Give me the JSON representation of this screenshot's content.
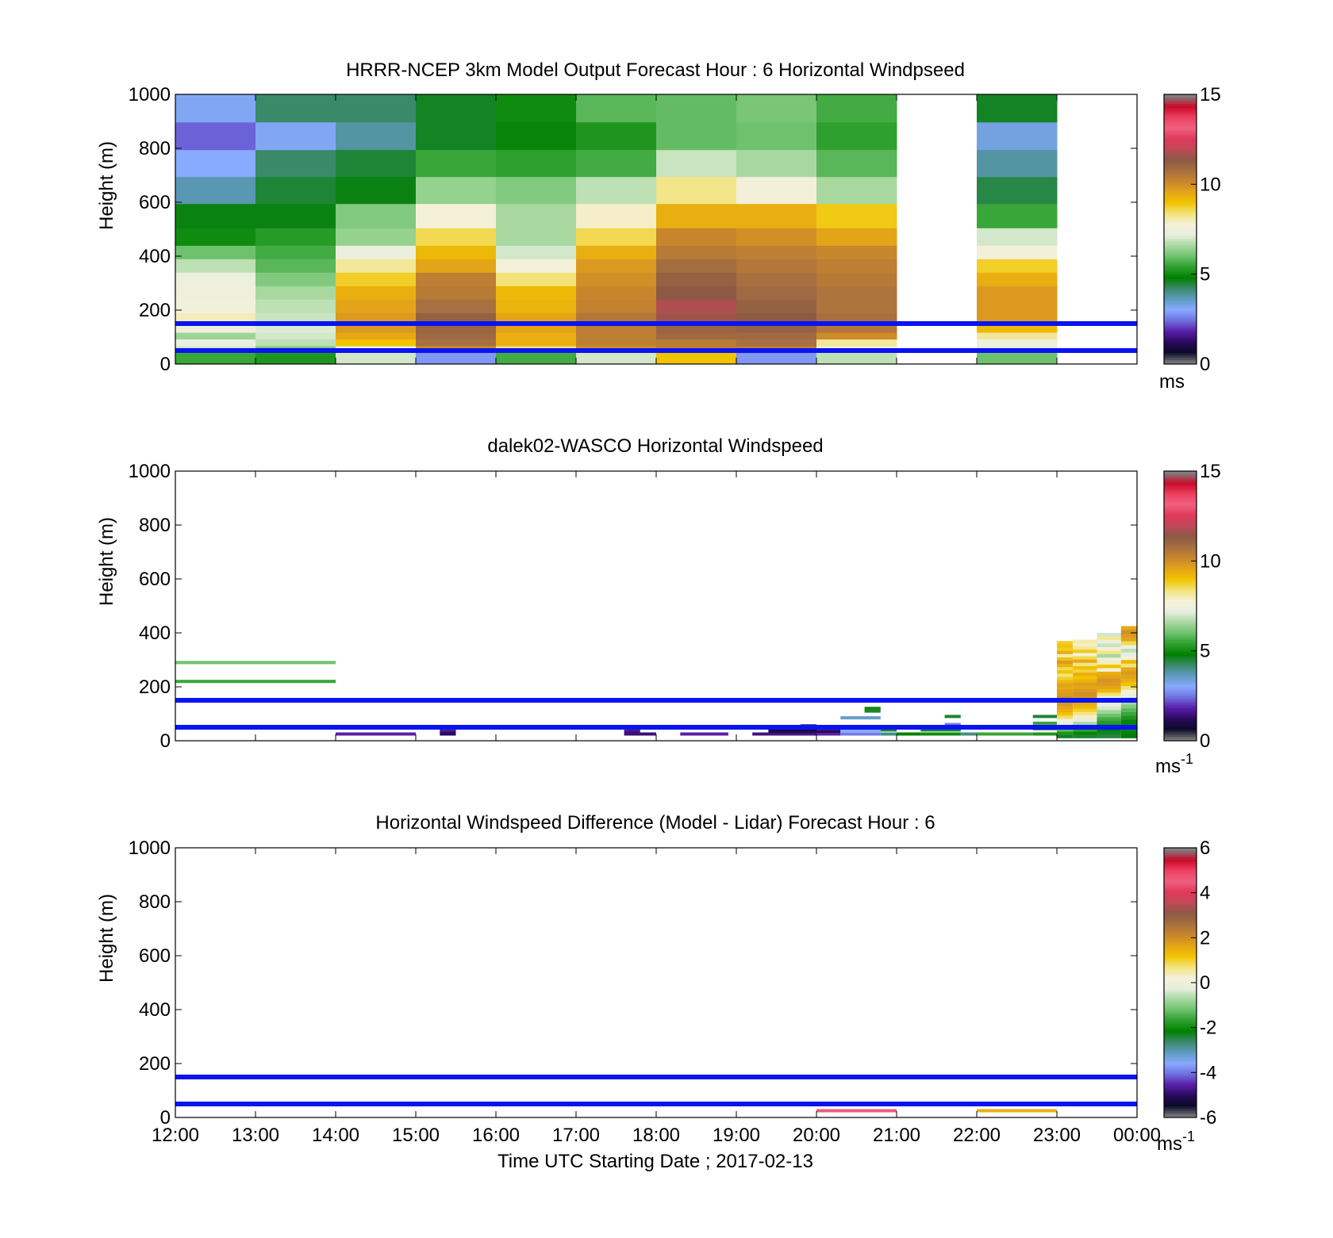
{
  "chart_data": [
    {
      "type": "heatmap",
      "title": "HRRR-NCEP 3km Model Output   Forecast Hour : 6 Horizontal Windpseed",
      "ylabel": "Height (m)",
      "xlim": [
        "12:00",
        "00:00"
      ],
      "ylim": [
        0,
        1000
      ],
      "yticks": [
        0,
        200,
        400,
        600,
        800,
        1000
      ],
      "colorbar": {
        "ticks": [
          0,
          5,
          10,
          15
        ],
        "range": [
          0,
          15
        ],
        "unit": "ms"
      },
      "reference_lines_m": [
        150,
        50
      ],
      "height_levels_m": [
        30,
        55,
        80,
        105,
        130,
        165,
        215,
        265,
        315,
        365,
        415,
        465,
        545,
        645,
        745,
        845,
        950
      ],
      "columns": [
        {
          "time": "12:00",
          "values": [
            5.5,
            7.0,
            7.3,
            6.5,
            7.5,
            8.0,
            7.6,
            7.5,
            7.4,
            6.8,
            6.0,
            5.0,
            4.7,
            3.7,
            3.0,
            2.3,
            3.1
          ]
        },
        {
          "time": "13:00",
          "values": [
            5.2,
            6.2,
            6.8,
            7.0,
            7.1,
            6.9,
            6.8,
            6.6,
            6.2,
            5.8,
            5.6,
            5.3,
            4.7,
            4.5,
            4.2,
            3.1,
            4.2
          ]
        },
        {
          "time": "14:00",
          "values": [
            7.0,
            7.4,
            9.0,
            9.5,
            9.8,
            9.8,
            9.6,
            9.4,
            8.8,
            8.2,
            7.4,
            6.4,
            6.2,
            4.7,
            4.5,
            3.8,
            4.2
          ]
        },
        {
          "time": "15:00",
          "values": [
            2.8,
            10.1,
            10.8,
            11.0,
            11.1,
            11.2,
            10.8,
            10.5,
            10.4,
            9.6,
            9.2,
            8.6,
            7.8,
            6.4,
            5.5,
            4.6,
            4.6
          ]
        },
        {
          "time": "16:00",
          "values": [
            5.6,
            8.4,
            9.4,
            9.4,
            9.6,
            9.6,
            9.3,
            9.2,
            8.4,
            7.8,
            7.0,
            6.6,
            6.6,
            6.2,
            5.4,
            4.9,
            5.0
          ]
        },
        {
          "time": "17:00",
          "values": [
            7.0,
            10.0,
            10.4,
            10.4,
            10.4,
            10.6,
            10.3,
            10.2,
            10.0,
            9.8,
            9.4,
            8.6,
            7.9,
            6.8,
            5.6,
            5.2,
            5.8
          ]
        },
        {
          "time": "18:00",
          "values": [
            9.0,
            10.4,
            10.5,
            11.0,
            11.1,
            11.6,
            11.8,
            11.4,
            11.2,
            10.9,
            10.5,
            10.2,
            9.4,
            8.3,
            6.9,
            5.9,
            5.9
          ]
        },
        {
          "time": "19:00",
          "values": [
            2.8,
            10.4,
            10.8,
            11.0,
            11.2,
            11.4,
            11.2,
            11.0,
            10.8,
            10.6,
            10.4,
            10.0,
            9.4,
            7.7,
            6.6,
            6.0,
            6.1
          ]
        },
        {
          "time": "20:00",
          "values": [
            6.8,
            7.6,
            8.2,
            10.1,
            10.6,
            10.8,
            10.7,
            10.7,
            10.5,
            10.4,
            10.2,
            9.6,
            8.9,
            6.6,
            5.8,
            5.4,
            5.6
          ]
        },
        {
          "time": "21:00",
          "values": []
        },
        {
          "time": "22:00",
          "values": [
            6.0,
            7.2,
            7.5,
            8.2,
            9.2,
            9.8,
            9.8,
            9.8,
            9.4,
            8.8,
            7.7,
            7.0,
            5.5,
            4.4,
            3.8,
            3.3,
            4.6
          ]
        },
        {
          "time": "23:00",
          "values": []
        }
      ]
    },
    {
      "type": "heatmap",
      "title": "dalek02-WASCO  Horizontal Windspeed",
      "ylabel": "Height (m)",
      "xlim": [
        "12:00",
        "00:00"
      ],
      "ylim": [
        0,
        1000
      ],
      "yticks": [
        0,
        200,
        400,
        600,
        800,
        1000
      ],
      "colorbar": {
        "ticks": [
          0,
          5,
          10,
          15
        ],
        "range": [
          0,
          15
        ],
        "unit": "ms",
        "unit_exponent": "-1"
      },
      "reference_lines_m": [
        150,
        50
      ],
      "observations": [
        {
          "t0": 12.0,
          "t1": 14.0,
          "z": 290,
          "v": 6.0
        },
        {
          "t0": 12.0,
          "t1": 14.0,
          "z": 220,
          "v": 5.5
        },
        {
          "t0": 14.0,
          "t1": 15.0,
          "z": 25,
          "v": 1.8
        },
        {
          "t0": 15.3,
          "t1": 15.5,
          "z": 35,
          "v": 1.5
        },
        {
          "t0": 15.3,
          "t1": 15.5,
          "z": 25,
          "v": 1.2
        },
        {
          "t0": 17.6,
          "t1": 17.8,
          "z": 35,
          "v": 1.5
        },
        {
          "t0": 17.6,
          "t1": 18.0,
          "z": 25,
          "v": 1.4
        },
        {
          "t0": 18.3,
          "t1": 18.9,
          "z": 25,
          "v": 1.8
        },
        {
          "t0": 19.2,
          "t1": 20.0,
          "z": 25,
          "v": 1.5
        },
        {
          "t0": 19.4,
          "t1": 20.0,
          "z": 35,
          "v": 1.0
        },
        {
          "t0": 19.4,
          "t1": 20.0,
          "z": 45,
          "v": 0.8
        },
        {
          "t0": 19.8,
          "t1": 20.0,
          "z": 55,
          "v": 0.5
        },
        {
          "t0": 20.0,
          "t1": 20.3,
          "z": 25,
          "v": 1.8
        },
        {
          "t0": 20.0,
          "t1": 20.3,
          "z": 35,
          "v": 1.2
        },
        {
          "t0": 20.3,
          "t1": 20.8,
          "z": 25,
          "v": 2.5
        },
        {
          "t0": 20.3,
          "t1": 20.8,
          "z": 35,
          "v": 3.0
        },
        {
          "t0": 20.3,
          "t1": 20.8,
          "z": 45,
          "v": 2.8
        },
        {
          "t0": 20.3,
          "t1": 20.8,
          "z": 85,
          "v": 3.5
        },
        {
          "t0": 20.6,
          "t1": 20.8,
          "z": 110,
          "v": 4.5
        },
        {
          "t0": 20.6,
          "t1": 20.8,
          "z": 120,
          "v": 5.0
        },
        {
          "t0": 20.8,
          "t1": 21.0,
          "z": 25,
          "v": 4.0
        },
        {
          "t0": 20.8,
          "t1": 21.0,
          "z": 40,
          "v": 4.5
        },
        {
          "t0": 21.0,
          "t1": 21.3,
          "z": 25,
          "v": 4.8
        },
        {
          "t0": 21.3,
          "t1": 21.8,
          "z": 25,
          "v": 5.0
        },
        {
          "t0": 21.3,
          "t1": 21.8,
          "z": 40,
          "v": 4.5
        },
        {
          "t0": 21.6,
          "t1": 21.8,
          "z": 60,
          "v": 2.5
        },
        {
          "t0": 21.6,
          "t1": 21.8,
          "z": 90,
          "v": 4.5
        },
        {
          "t0": 21.8,
          "t1": 22.0,
          "z": 25,
          "v": 4.0
        },
        {
          "t0": 22.0,
          "t1": 22.7,
          "z": 25,
          "v": 5.5
        },
        {
          "t0": 22.7,
          "t1": 23.0,
          "z": 25,
          "v": 5.2
        },
        {
          "t0": 22.7,
          "t1": 23.0,
          "z": 45,
          "v": 4.8
        },
        {
          "t0": 22.7,
          "t1": 23.0,
          "z": 65,
          "v": 5.5
        },
        {
          "t0": 22.7,
          "t1": 23.0,
          "z": 90,
          "v": 4.5
        }
      ],
      "profiles": [
        {
          "t0": 23.0,
          "t1": 23.2,
          "z0": 10,
          "z1": 370,
          "values": [
            4.6,
            5.2,
            5.8,
            6.3,
            7.2,
            7.8,
            8.5,
            9.0,
            9.4,
            9.6,
            9.8,
            9.9,
            10.0,
            9.8,
            9.7,
            9.5,
            9.6,
            9.2,
            8.8,
            8.4,
            9.0,
            8.6,
            9.3,
            9.8,
            9.1,
            8.0,
            9.4,
            8.8,
            9.0,
            8.8
          ]
        },
        {
          "t0": 23.2,
          "t1": 23.5,
          "z0": 10,
          "z1": 375,
          "values": [
            4.5,
            4.9,
            5.4,
            6.0,
            6.6,
            7.2,
            7.9,
            8.3,
            8.8,
            9.2,
            9.5,
            9.7,
            9.9,
            10.0,
            9.8,
            9.6,
            9.7,
            9.3,
            9.0,
            9.4,
            8.7,
            9.1,
            8.3,
            9.5,
            8.6,
            7.8,
            8.9,
            8.2,
            7.9,
            8.1
          ]
        },
        {
          "t0": 23.5,
          "t1": 23.8,
          "z0": 10,
          "z1": 400,
          "values": [
            4.4,
            4.6,
            4.8,
            5.0,
            5.3,
            5.6,
            6.0,
            6.5,
            7.0,
            7.3,
            7.1,
            7.6,
            8.4,
            9.2,
            9.6,
            9.8,
            9.9,
            9.6,
            9.4,
            7.8,
            9.0,
            8.0,
            7.5,
            6.6,
            8.3,
            7.7,
            6.9,
            7.4,
            8.2,
            7.0
          ]
        },
        {
          "t0": 23.8,
          "t1": 24.0,
          "z0": 10,
          "z1": 425,
          "values": [
            4.8,
            4.7,
            4.6,
            4.7,
            4.9,
            5.2,
            5.5,
            5.8,
            6.2,
            6.6,
            7.0,
            7.4,
            7.8,
            8.4,
            9.0,
            9.4,
            9.6,
            9.8,
            9.5,
            8.4,
            9.2,
            7.8,
            7.2,
            6.8,
            7.4,
            8.6,
            9.6,
            9.8,
            10.0,
            9.5
          ]
        }
      ]
    },
    {
      "type": "heatmap",
      "title": "Horizontal Windspeed Difference (Model - Lidar) Forecast Hour : 6",
      "xlabel": "Time UTC  Starting Date ; 2017-02-13",
      "ylabel": "Height (m)",
      "xticks": [
        "12:00",
        "13:00",
        "14:00",
        "15:00",
        "16:00",
        "17:00",
        "18:00",
        "19:00",
        "20:00",
        "21:00",
        "22:00",
        "23:00",
        "00:00"
      ],
      "ylim": [
        0,
        1000
      ],
      "yticks": [
        0,
        200,
        400,
        600,
        800,
        1000
      ],
      "colorbar": {
        "ticks": [
          -6,
          -4,
          -2,
          0,
          2,
          4,
          6
        ],
        "range": [
          -6,
          6
        ],
        "unit": "ms",
        "unit_exponent": "-1"
      },
      "reference_lines_m": [
        150,
        50
      ],
      "observations": [
        {
          "t0": 20.0,
          "t1": 21.0,
          "z": 25,
          "v": 4.5
        },
        {
          "t0": 22.0,
          "t1": 23.0,
          "z": 25,
          "v": 1.5
        }
      ]
    }
  ],
  "colors": {
    "reference_line": "#0a14f0",
    "colormap": [
      "#808080",
      "#0a0a28",
      "#2a0a5e",
      "#5a1eaa",
      "#7070e0",
      "#88aaff",
      "#5f9ac0",
      "#3a8a6a",
      "#008000",
      "#2ea02e",
      "#6ec26e",
      "#a8d8a0",
      "#e8efe0",
      "#f5f0d8",
      "#f2e37a",
      "#f2c400",
      "#e4a418",
      "#c8862c",
      "#a87040",
      "#8c5a44",
      "#c04858",
      "#e03a5a",
      "#f06080",
      "#ee4060",
      "#c80a28",
      "#808080"
    ]
  }
}
